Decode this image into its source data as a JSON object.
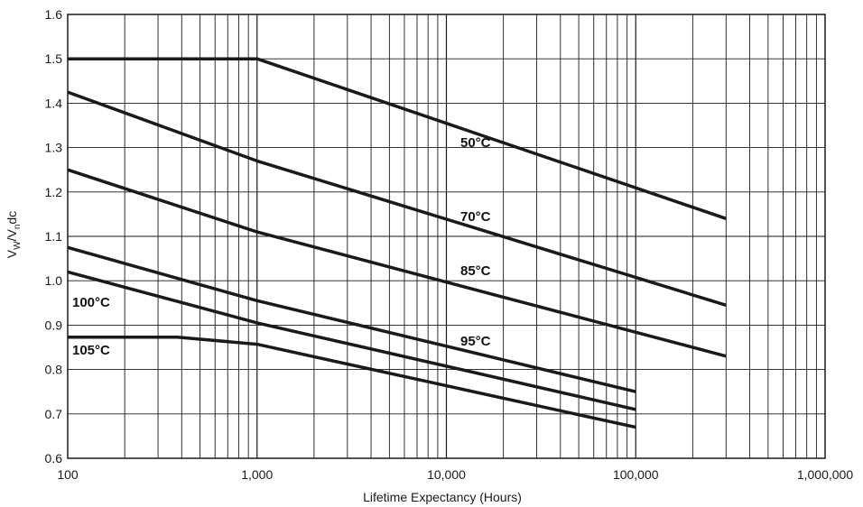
{
  "chart_data": {
    "type": "line",
    "title": "",
    "xlabel": "Lifetime Expectancy (Hours)",
    "ylabel": "V_W/V_ndc",
    "ylabel_parts": {
      "v1": "V",
      "sub1": "W",
      "slash": "/V",
      "sub2": "n",
      "tail": "dc"
    },
    "xscale": "log",
    "xlim": [
      100,
      1000000
    ],
    "ylim": [
      0.6,
      1.6
    ],
    "grid": true,
    "x_tick_labels": [
      "100",
      "1,000",
      "10,000",
      "100,000",
      "1,000,000"
    ],
    "y_tick_labels": [
      "0.6",
      "0.7",
      "0.8",
      "0.9",
      "1.0",
      "1.1",
      "1.2",
      "1.3",
      "1.4",
      "1.5",
      "1.6"
    ],
    "series": [
      {
        "name": "50°C",
        "points": [
          [
            100,
            1.5
          ],
          [
            1000,
            1.5
          ],
          [
            300000,
            1.14
          ]
        ]
      },
      {
        "name": "70°C",
        "points": [
          [
            100,
            1.425
          ],
          [
            1000,
            1.27
          ],
          [
            300000,
            0.945
          ]
        ]
      },
      {
        "name": "85°C",
        "points": [
          [
            100,
            1.25
          ],
          [
            1000,
            1.11
          ],
          [
            300000,
            0.83
          ]
        ]
      },
      {
        "name": "95°C",
        "points": [
          [
            100,
            1.075
          ],
          [
            1000,
            0.955
          ],
          [
            100000,
            0.75
          ]
        ]
      },
      {
        "name": "100°C",
        "points": [
          [
            100,
            1.02
          ],
          [
            1000,
            0.905
          ],
          [
            100000,
            0.71
          ]
        ]
      },
      {
        "name": "105°C",
        "points": [
          [
            100,
            0.873
          ],
          [
            380,
            0.873
          ],
          [
            1000,
            0.857
          ],
          [
            100000,
            0.67
          ]
        ]
      }
    ],
    "colors": {
      "line": "#1a1a1a",
      "grid": "#1a1a1a",
      "background": "#ffffff"
    }
  }
}
